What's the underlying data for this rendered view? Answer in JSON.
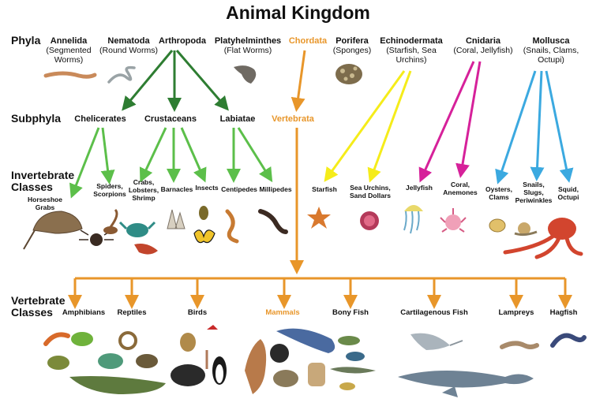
{
  "title": "Animal Kingdom",
  "rows": {
    "phyla": "Phyla",
    "subphyla": "Subphyla",
    "invertebrate": "Invertebrate\nClasses",
    "vertebrate": "Vertebrate\nClasses"
  },
  "phyla": [
    {
      "name": "Annelida",
      "desc": "(Segmented\nWorms)"
    },
    {
      "name": "Nematoda",
      "desc": "(Round Worms)"
    },
    {
      "name": "Arthropoda",
      "desc": ""
    },
    {
      "name": "Platyhelminthes",
      "desc": "(Flat Worms)"
    },
    {
      "name": "Chordata",
      "desc": ""
    },
    {
      "name": "Porifera",
      "desc": "(Sponges)"
    },
    {
      "name": "Echinodermata",
      "desc": "(Starfish, Sea\nUrchins)"
    },
    {
      "name": "Cnidaria",
      "desc": "(Coral, Jellyfish)"
    },
    {
      "name": "Mollusca",
      "desc": "(Snails, Clams,\nOctupi)"
    }
  ],
  "subphyla": [
    "Chelicerates",
    "Crustaceans",
    "Labiatae",
    "Vertebrata"
  ],
  "invertebrate_classes": [
    "Horseshoe\nGrabs",
    "Spiders,\nScorpions",
    "Crabs,\nLobsters,\nShrimp",
    "Barnacles",
    "Insects",
    "Centipedes",
    "Millipedes",
    "Starfish",
    "Sea Urchins,\nSand Dollars",
    "Jellyfish",
    "Coral,\nAnemones",
    "Oysters,\nClams",
    "Snails,\nSlugs,\nPeriwinkles",
    "Squid,\nOctupi"
  ],
  "vertebrate_classes": [
    "Amphibians",
    "Reptiles",
    "Birds",
    "Mammals",
    "Bony Fish",
    "Cartilagenous Fish",
    "Lampreys",
    "Hagfish"
  ],
  "colors": {
    "arthropoda": "#2e7d32",
    "subphyla_branch": "#5cbf4a",
    "chordata": "#e8962a",
    "echinodermata": "#f5ec1a",
    "cnidaria": "#d6219a",
    "mollusca": "#3ba9e0",
    "highlight_text": "#e8962a"
  }
}
